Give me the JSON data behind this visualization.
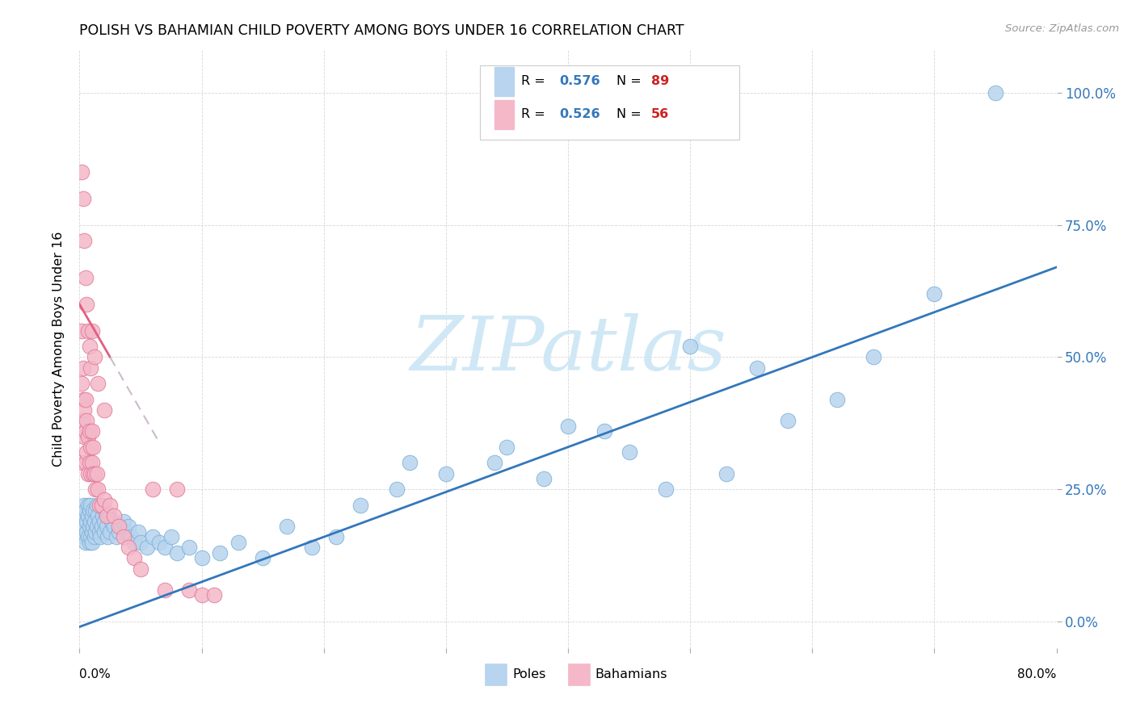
{
  "title": "POLISH VS BAHAMIAN CHILD POVERTY AMONG BOYS UNDER 16 CORRELATION CHART",
  "source": "Source: ZipAtlas.com",
  "ylabel": "Child Poverty Among Boys Under 16",
  "ytick_vals": [
    0.0,
    0.25,
    0.5,
    0.75,
    1.0
  ],
  "ytick_labels": [
    "0.0%",
    "25.0%",
    "50.0%",
    "75.0%",
    "100.0%"
  ],
  "xmin": 0.0,
  "xmax": 0.8,
  "ymin": -0.05,
  "ymax": 1.08,
  "poles_color": "#b8d4ee",
  "poles_edge_color": "#7ab0d8",
  "bahamians_color": "#f4b8c8",
  "bahamians_edge_color": "#e07898",
  "trend_poles_color": "#3377bb",
  "trend_bahamians_color": "#e06080",
  "legend_R_color": "#3377bb",
  "legend_N_color": "#cc2222",
  "watermark_text": "ZIPatlas",
  "watermark_color": "#d0e8f5",
  "poles_x": [
    0.001,
    0.002,
    0.003,
    0.003,
    0.004,
    0.004,
    0.005,
    0.005,
    0.005,
    0.006,
    0.006,
    0.007,
    0.007,
    0.007,
    0.008,
    0.008,
    0.008,
    0.009,
    0.009,
    0.009,
    0.01,
    0.01,
    0.01,
    0.011,
    0.011,
    0.012,
    0.012,
    0.013,
    0.013,
    0.014,
    0.014,
    0.015,
    0.016,
    0.016,
    0.017,
    0.018,
    0.019,
    0.02,
    0.02,
    0.021,
    0.022,
    0.023,
    0.024,
    0.025,
    0.026,
    0.028,
    0.03,
    0.032,
    0.034,
    0.036,
    0.038,
    0.04,
    0.042,
    0.045,
    0.048,
    0.05,
    0.055,
    0.06,
    0.065,
    0.07,
    0.075,
    0.08,
    0.09,
    0.1,
    0.115,
    0.13,
    0.15,
    0.17,
    0.19,
    0.21,
    0.23,
    0.26,
    0.3,
    0.34,
    0.38,
    0.43,
    0.48,
    0.53,
    0.58,
    0.62,
    0.65,
    0.7,
    0.5,
    0.555,
    0.45,
    0.4,
    0.35,
    0.27,
    0.75
  ],
  "poles_y": [
    0.19,
    0.17,
    0.18,
    0.2,
    0.16,
    0.22,
    0.15,
    0.18,
    0.21,
    0.17,
    0.19,
    0.16,
    0.2,
    0.22,
    0.15,
    0.18,
    0.21,
    0.16,
    0.19,
    0.22,
    0.15,
    0.17,
    0.2,
    0.18,
    0.21,
    0.16,
    0.19,
    0.17,
    0.21,
    0.18,
    0.22,
    0.2,
    0.17,
    0.19,
    0.16,
    0.18,
    0.2,
    0.17,
    0.19,
    0.21,
    0.18,
    0.16,
    0.2,
    0.17,
    0.19,
    0.18,
    0.16,
    0.17,
    0.18,
    0.19,
    0.17,
    0.18,
    0.16,
    0.15,
    0.17,
    0.15,
    0.14,
    0.16,
    0.15,
    0.14,
    0.16,
    0.13,
    0.14,
    0.12,
    0.13,
    0.15,
    0.12,
    0.18,
    0.14,
    0.16,
    0.22,
    0.25,
    0.28,
    0.3,
    0.27,
    0.36,
    0.25,
    0.28,
    0.38,
    0.42,
    0.5,
    0.62,
    0.52,
    0.48,
    0.32,
    0.37,
    0.33,
    0.3,
    1.0
  ],
  "bahamians_x": [
    0.001,
    0.002,
    0.002,
    0.003,
    0.003,
    0.003,
    0.004,
    0.004,
    0.005,
    0.005,
    0.005,
    0.006,
    0.006,
    0.007,
    0.007,
    0.008,
    0.008,
    0.009,
    0.009,
    0.01,
    0.01,
    0.011,
    0.011,
    0.012,
    0.013,
    0.014,
    0.015,
    0.016,
    0.018,
    0.02,
    0.022,
    0.025,
    0.028,
    0.032,
    0.036,
    0.04,
    0.045,
    0.05,
    0.06,
    0.07,
    0.08,
    0.09,
    0.1,
    0.11,
    0.002,
    0.003,
    0.004,
    0.005,
    0.006,
    0.007,
    0.008,
    0.009,
    0.01,
    0.012,
    0.015,
    0.02
  ],
  "bahamians_y": [
    0.3,
    0.55,
    0.45,
    0.38,
    0.42,
    0.48,
    0.35,
    0.4,
    0.3,
    0.36,
    0.42,
    0.32,
    0.38,
    0.28,
    0.35,
    0.3,
    0.36,
    0.28,
    0.33,
    0.3,
    0.36,
    0.28,
    0.33,
    0.28,
    0.25,
    0.28,
    0.25,
    0.22,
    0.22,
    0.23,
    0.2,
    0.22,
    0.2,
    0.18,
    0.16,
    0.14,
    0.12,
    0.1,
    0.25,
    0.06,
    0.25,
    0.06,
    0.05,
    0.05,
    0.85,
    0.8,
    0.72,
    0.65,
    0.6,
    0.55,
    0.52,
    0.48,
    0.55,
    0.5,
    0.45,
    0.4
  ],
  "trend_poles_intercept": -0.01,
  "trend_poles_slope": 0.85,
  "trend_bahamians_intercept": 0.6,
  "trend_bahamians_slope": -4.0
}
